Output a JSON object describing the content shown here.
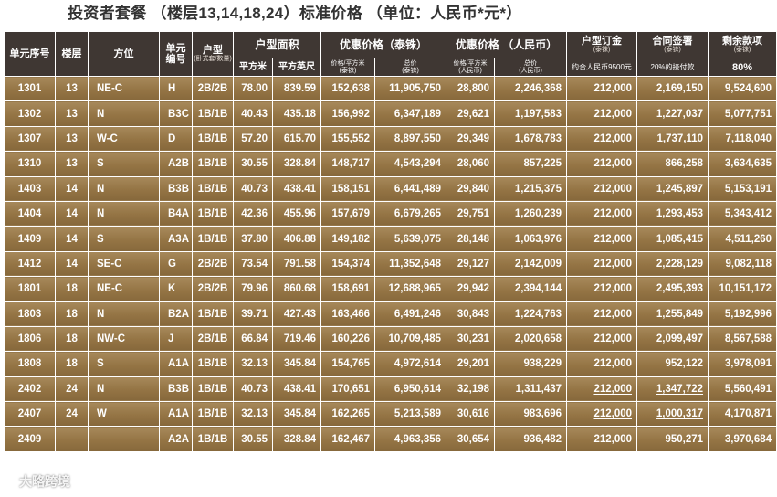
{
  "title": "投资者套餐 （楼层13,14,18,24）标准价格 （单位：人民币*元*）",
  "header": {
    "unit_no": "单元序号",
    "floor": "楼层",
    "direction": "方位",
    "unit_code_1": "单元",
    "unit_code_2": "编号",
    "type": "户型",
    "type_sub": "(卧式套/数量)",
    "area": "户型面积",
    "sqm": "平方米",
    "sqft": "平方英尺",
    "price_thb": "优惠价格（泰铢）",
    "price_thb_unit_1": "价格/平方米",
    "price_thb_unit_2": "(泰铢)",
    "price_thb_total_1": "总价",
    "price_thb_total_2": "(泰铢)",
    "price_rmb": "优惠价格 （人民币）",
    "price_rmb_unit_1": "价格/平方米",
    "price_rmb_unit_2": "(人民币)",
    "price_rmb_total_1": "总价",
    "price_rmb_total_2": "(人民币)",
    "deposit": "户型订金",
    "deposit_sub": "(泰铢)",
    "deposit_note": "约合人民币9500元",
    "contract": "合同签署",
    "contract_sub": "(泰铢)",
    "contract_note": "20%的接付款",
    "remaining": "剩余款项",
    "remaining_sub": "(泰铢)",
    "remaining_pct": "80%"
  },
  "rows": [
    {
      "unit": "1301",
      "floor": "13",
      "dir": "NE-C",
      "code": "H",
      "type": "2B/2B",
      "sqm": "78.00",
      "sqft": "839.59",
      "thb_sqm": "152,638",
      "thb_total": "11,905,750",
      "rmb_sqm": "28,800",
      "rmb_total": "2,246,368",
      "deposit": "212,000",
      "contract": "2,169,150",
      "remaining": "9,524,600"
    },
    {
      "unit": "1302",
      "floor": "13",
      "dir": "N",
      "code": "B3C",
      "type": "1B/1B",
      "sqm": "40.43",
      "sqft": "435.18",
      "thb_sqm": "156,992",
      "thb_total": "6,347,189",
      "rmb_sqm": "29,621",
      "rmb_total": "1,197,583",
      "deposit": "212,000",
      "contract": "1,227,037",
      "remaining": "5,077,751"
    },
    {
      "unit": "1307",
      "floor": "13",
      "dir": "W-C",
      "code": "D",
      "type": "1B/1B",
      "sqm": "57.20",
      "sqft": "615.70",
      "thb_sqm": "155,552",
      "thb_total": "8,897,550",
      "rmb_sqm": "29,349",
      "rmb_total": "1,678,783",
      "deposit": "212,000",
      "contract": "1,737,110",
      "remaining": "7,118,040"
    },
    {
      "unit": "1310",
      "floor": "13",
      "dir": "S",
      "code": "A2B",
      "type": "1B/1B",
      "sqm": "30.55",
      "sqft": "328.84",
      "thb_sqm": "148,717",
      "thb_total": "4,543,294",
      "rmb_sqm": "28,060",
      "rmb_total": "857,225",
      "deposit": "212,000",
      "contract": "866,258",
      "remaining": "3,634,635"
    },
    {
      "unit": "1403",
      "floor": "14",
      "dir": "N",
      "code": "B3B",
      "type": "1B/1B",
      "sqm": "40.73",
      "sqft": "438.41",
      "thb_sqm": "158,151",
      "thb_total": "6,441,489",
      "rmb_sqm": "29,840",
      "rmb_total": "1,215,375",
      "deposit": "212,000",
      "contract": "1,245,897",
      "remaining": "5,153,191"
    },
    {
      "unit": "1404",
      "floor": "14",
      "dir": "N",
      "code": "B4A",
      "type": "1B/1B",
      "sqm": "42.36",
      "sqft": "455.96",
      "thb_sqm": "157,679",
      "thb_total": "6,679,265",
      "rmb_sqm": "29,751",
      "rmb_total": "1,260,239",
      "deposit": "212,000",
      "contract": "1,293,453",
      "remaining": "5,343,412"
    },
    {
      "unit": "1409",
      "floor": "14",
      "dir": "S",
      "code": "A3A",
      "type": "1B/1B",
      "sqm": "37.80",
      "sqft": "406.88",
      "thb_sqm": "149,182",
      "thb_total": "5,639,075",
      "rmb_sqm": "28,148",
      "rmb_total": "1,063,976",
      "deposit": "212,000",
      "contract": "1,085,415",
      "remaining": "4,511,260"
    },
    {
      "unit": "1412",
      "floor": "14",
      "dir": "SE-C",
      "code": "G",
      "type": "2B/2B",
      "sqm": "73.54",
      "sqft": "791.58",
      "thb_sqm": "154,374",
      "thb_total": "11,352,648",
      "rmb_sqm": "29,127",
      "rmb_total": "2,142,009",
      "deposit": "212,000",
      "contract": "2,228,129",
      "remaining": "9,082,118"
    },
    {
      "unit": "1801",
      "floor": "18",
      "dir": "NE-C",
      "code": "K",
      "type": "2B/2B",
      "sqm": "79.96",
      "sqft": "860.68",
      "thb_sqm": "158,691",
      "thb_total": "12,688,965",
      "rmb_sqm": "29,942",
      "rmb_total": "2,394,144",
      "deposit": "212,000",
      "contract": "2,495,393",
      "remaining": "10,151,172"
    },
    {
      "unit": "1803",
      "floor": "18",
      "dir": "N",
      "code": "B2A",
      "type": "1B/1B",
      "sqm": "39.71",
      "sqft": "427.43",
      "thb_sqm": "163,466",
      "thb_total": "6,491,246",
      "rmb_sqm": "30,843",
      "rmb_total": "1,224,763",
      "deposit": "212,000",
      "contract": "1,255,849",
      "remaining": "5,192,996"
    },
    {
      "unit": "1806",
      "floor": "18",
      "dir": "NW-C",
      "code": "J",
      "type": "2B/1B",
      "sqm": "66.84",
      "sqft": "719.46",
      "thb_sqm": "160,226",
      "thb_total": "10,709,485",
      "rmb_sqm": "30,231",
      "rmb_total": "2,020,658",
      "deposit": "212,000",
      "contract": "2,099,497",
      "remaining": "8,567,588"
    },
    {
      "unit": "1808",
      "floor": "18",
      "dir": "S",
      "code": "A1A",
      "type": "1B/1B",
      "sqm": "32.13",
      "sqft": "345.84",
      "thb_sqm": "154,765",
      "thb_total": "4,972,614",
      "rmb_sqm": "29,201",
      "rmb_total": "938,229",
      "deposit": "212,000",
      "contract": "952,122",
      "remaining": "3,978,091"
    },
    {
      "unit": "2402",
      "floor": "24",
      "dir": "N",
      "code": "B3B",
      "type": "1B/1B",
      "sqm": "40.73",
      "sqft": "438.41",
      "thb_sqm": "170,651",
      "thb_total": "6,950,614",
      "rmb_sqm": "32,198",
      "rmb_total": "1,311,437",
      "deposit": "212,000",
      "contract": "1,347,722",
      "remaining": "5,560,491"
    },
    {
      "unit": "2407",
      "floor": "24",
      "dir": "W",
      "code": "A1A",
      "type": "1B/1B",
      "sqm": "32.13",
      "sqft": "345.84",
      "thb_sqm": "162,265",
      "thb_total": "5,213,589",
      "rmb_sqm": "30,616",
      "rmb_total": "983,696",
      "deposit": "212,000",
      "contract": "1,000,317",
      "remaining": "4,170,871"
    },
    {
      "unit": "2409",
      "floor": "",
      "dir": "",
      "code": "A2A",
      "type": "1B/1B",
      "sqm": "30.55",
      "sqft": "328.84",
      "thb_sqm": "162,467",
      "thb_total": "4,963,356",
      "rmb_sqm": "30,654",
      "rmb_total": "936,482",
      "deposit": "212,000",
      "contract": "950,271",
      "remaining": "3,970,684"
    }
  ],
  "watermark": "大略跨境"
}
